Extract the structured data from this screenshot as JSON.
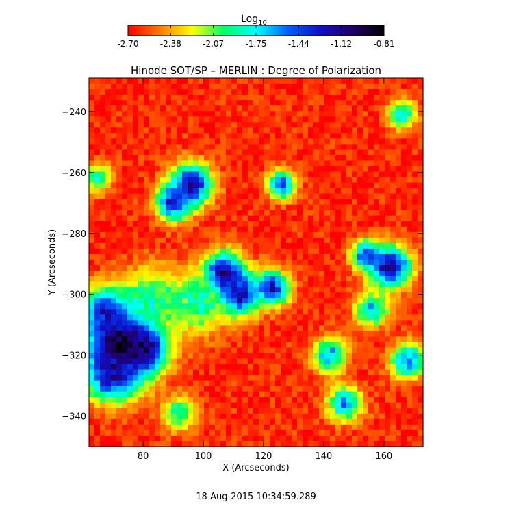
{
  "chart_data": {
    "type": "heatmap",
    "title": "Hinode SOT/SP – MERLIN : Degree of Polarization",
    "xlabel": "X (Arcseconds)",
    "ylabel": "Y (Arcseconds)",
    "xlim": [
      62,
      173
    ],
    "ylim": [
      -350,
      -229
    ],
    "x_ticks": [
      80,
      100,
      120,
      140,
      160
    ],
    "y_ticks": [
      -240,
      -260,
      -280,
      -300,
      -320,
      -340
    ],
    "footer": "18-Aug-2015 10:34:59.289",
    "colorbar": {
      "label_base": "Log",
      "label_sub": "10",
      "range": [
        -2.7,
        -0.81
      ],
      "tick_labels": [
        "-2.70",
        "-2.38",
        "-2.07",
        "-1.75",
        "-1.44",
        "-1.12",
        "-0.81"
      ],
      "colormap": [
        "#ff0000",
        "#ff7a00",
        "#ffff00",
        "#00ff66",
        "#00ffff",
        "#0060ff",
        "#1010c8",
        "#20006a",
        "#000000"
      ]
    },
    "grid": false,
    "strong_polarization_regions": [
      {
        "x": 72,
        "y": -316,
        "r": 9,
        "value": -0.9
      },
      {
        "x": 80,
        "y": -318,
        "r": 7,
        "value": -1.0
      },
      {
        "x": 70,
        "y": -326,
        "r": 8,
        "value": -1.15
      },
      {
        "x": 68,
        "y": -306,
        "r": 7,
        "value": -1.25
      },
      {
        "x": 96,
        "y": -264,
        "r": 6,
        "value": -1.15
      },
      {
        "x": 90,
        "y": -270,
        "r": 5,
        "value": -1.25
      },
      {
        "x": 107,
        "y": -293,
        "r": 6,
        "value": -1.15
      },
      {
        "x": 112,
        "y": -300,
        "r": 6,
        "value": -1.2
      },
      {
        "x": 123,
        "y": -298,
        "r": 5,
        "value": -1.3
      },
      {
        "x": 162,
        "y": -291,
        "r": 6,
        "value": -1.1
      },
      {
        "x": 154,
        "y": -287,
        "r": 4,
        "value": -1.35
      },
      {
        "x": 82,
        "y": -302,
        "r": 9,
        "value": -1.85
      },
      {
        "x": 98,
        "y": -303,
        "r": 9,
        "value": -1.9
      },
      {
        "x": 126,
        "y": -264,
        "r": 4,
        "value": -1.4
      },
      {
        "x": 142,
        "y": -320,
        "r": 5,
        "value": -1.6
      },
      {
        "x": 147,
        "y": -336,
        "r": 5,
        "value": -1.6
      },
      {
        "x": 168,
        "y": -322,
        "r": 5,
        "value": -1.5
      },
      {
        "x": 166,
        "y": -241,
        "r": 4,
        "value": -1.7
      },
      {
        "x": 65,
        "y": -262,
        "r": 4,
        "value": -1.8
      },
      {
        "x": 92,
        "y": -339,
        "r": 5,
        "value": -1.85
      },
      {
        "x": 156,
        "y": -305,
        "r": 5,
        "value": -1.7
      }
    ]
  }
}
